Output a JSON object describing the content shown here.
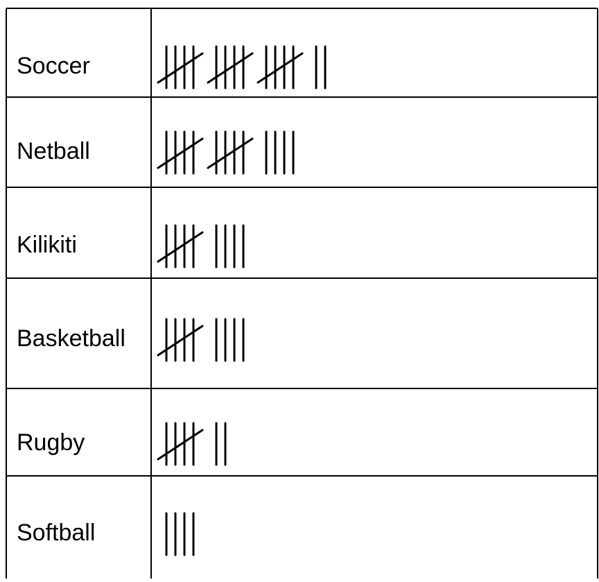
{
  "table": {
    "rows": [
      {
        "sport": "Soccer",
        "tally": 17
      },
      {
        "sport": "Netball",
        "tally": 14
      },
      {
        "sport": "Kilikiti",
        "tally": 9
      },
      {
        "sport": "Basketball",
        "tally": 9
      },
      {
        "sport": "Rugby",
        "tally": 7
      },
      {
        "sport": "Softball",
        "tally": 4
      }
    ]
  }
}
